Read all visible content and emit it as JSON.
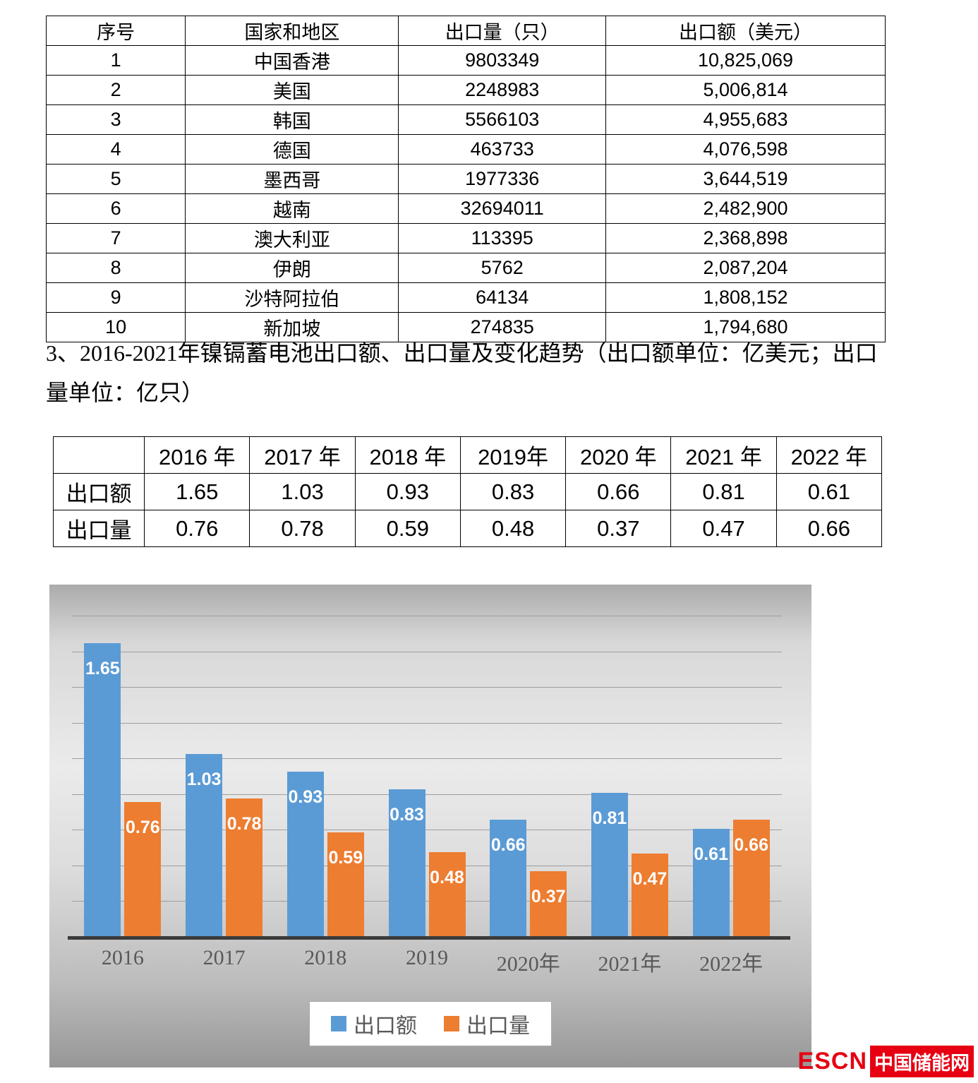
{
  "table1": {
    "headers": [
      "序号",
      "国家和地区",
      "出口量（只）",
      "出口额（美元）"
    ],
    "rows": [
      [
        "1",
        "中国香港",
        "9803349",
        "10,825,069"
      ],
      [
        "2",
        "美国",
        "2248983",
        "5,006,814"
      ],
      [
        "3",
        "韩国",
        "5566103",
        "4,955,683"
      ],
      [
        "4",
        "德国",
        "463733",
        "4,076,598"
      ],
      [
        "5",
        "墨西哥",
        "1977336",
        "3,644,519"
      ],
      [
        "6",
        "越南",
        "32694011",
        "2,482,900"
      ],
      [
        "7",
        "澳大利亚",
        "113395",
        "2,368,898"
      ],
      [
        "8",
        "伊朗",
        "5762",
        "2,087,204"
      ],
      [
        "9",
        "沙特阿拉伯",
        "64134",
        "1,808,152"
      ],
      [
        "10",
        "新加坡",
        "274835",
        "1,794,680"
      ]
    ]
  },
  "heading": {
    "text": "3、2016-2021年镍镉蓄电池出口额、出口量及变化趋势（出口额单位：亿美元；出口量单位：亿只）"
  },
  "table2": {
    "headers": [
      "",
      "2016 年",
      "2017 年",
      "2018 年",
      "2019年",
      "2020 年",
      "2021 年",
      "2022 年"
    ],
    "rows": [
      [
        "出口额",
        "1.65",
        "1.03",
        "0.93",
        "0.83",
        "0.66",
        "0.81",
        "0.61"
      ],
      [
        "出口量",
        "0.76",
        "0.78",
        "0.59",
        "0.48",
        "0.37",
        "0.47",
        "0.66"
      ]
    ]
  },
  "chart_data": {
    "type": "bar",
    "categories": [
      "2016",
      "2017",
      "2018",
      "2019",
      "2020年",
      "2021年",
      "2022年"
    ],
    "series": [
      {
        "name": "出口额",
        "color": "#5B9BD5",
        "values": [
          1.65,
          1.03,
          0.93,
          0.83,
          0.66,
          0.81,
          0.61
        ]
      },
      {
        "name": "出口量",
        "color": "#ED7D31",
        "values": [
          0.76,
          0.78,
          0.59,
          0.48,
          0.37,
          0.47,
          0.66
        ]
      }
    ],
    "title": "",
    "xlabel": "",
    "ylabel": "",
    "ylim": [
      0,
      1.8
    ],
    "grid_step": 0.2,
    "grid": true,
    "legend_position": "bottom"
  },
  "footer": {
    "logo_escn": "ESCN",
    "logo_cn": "中国储能网"
  }
}
